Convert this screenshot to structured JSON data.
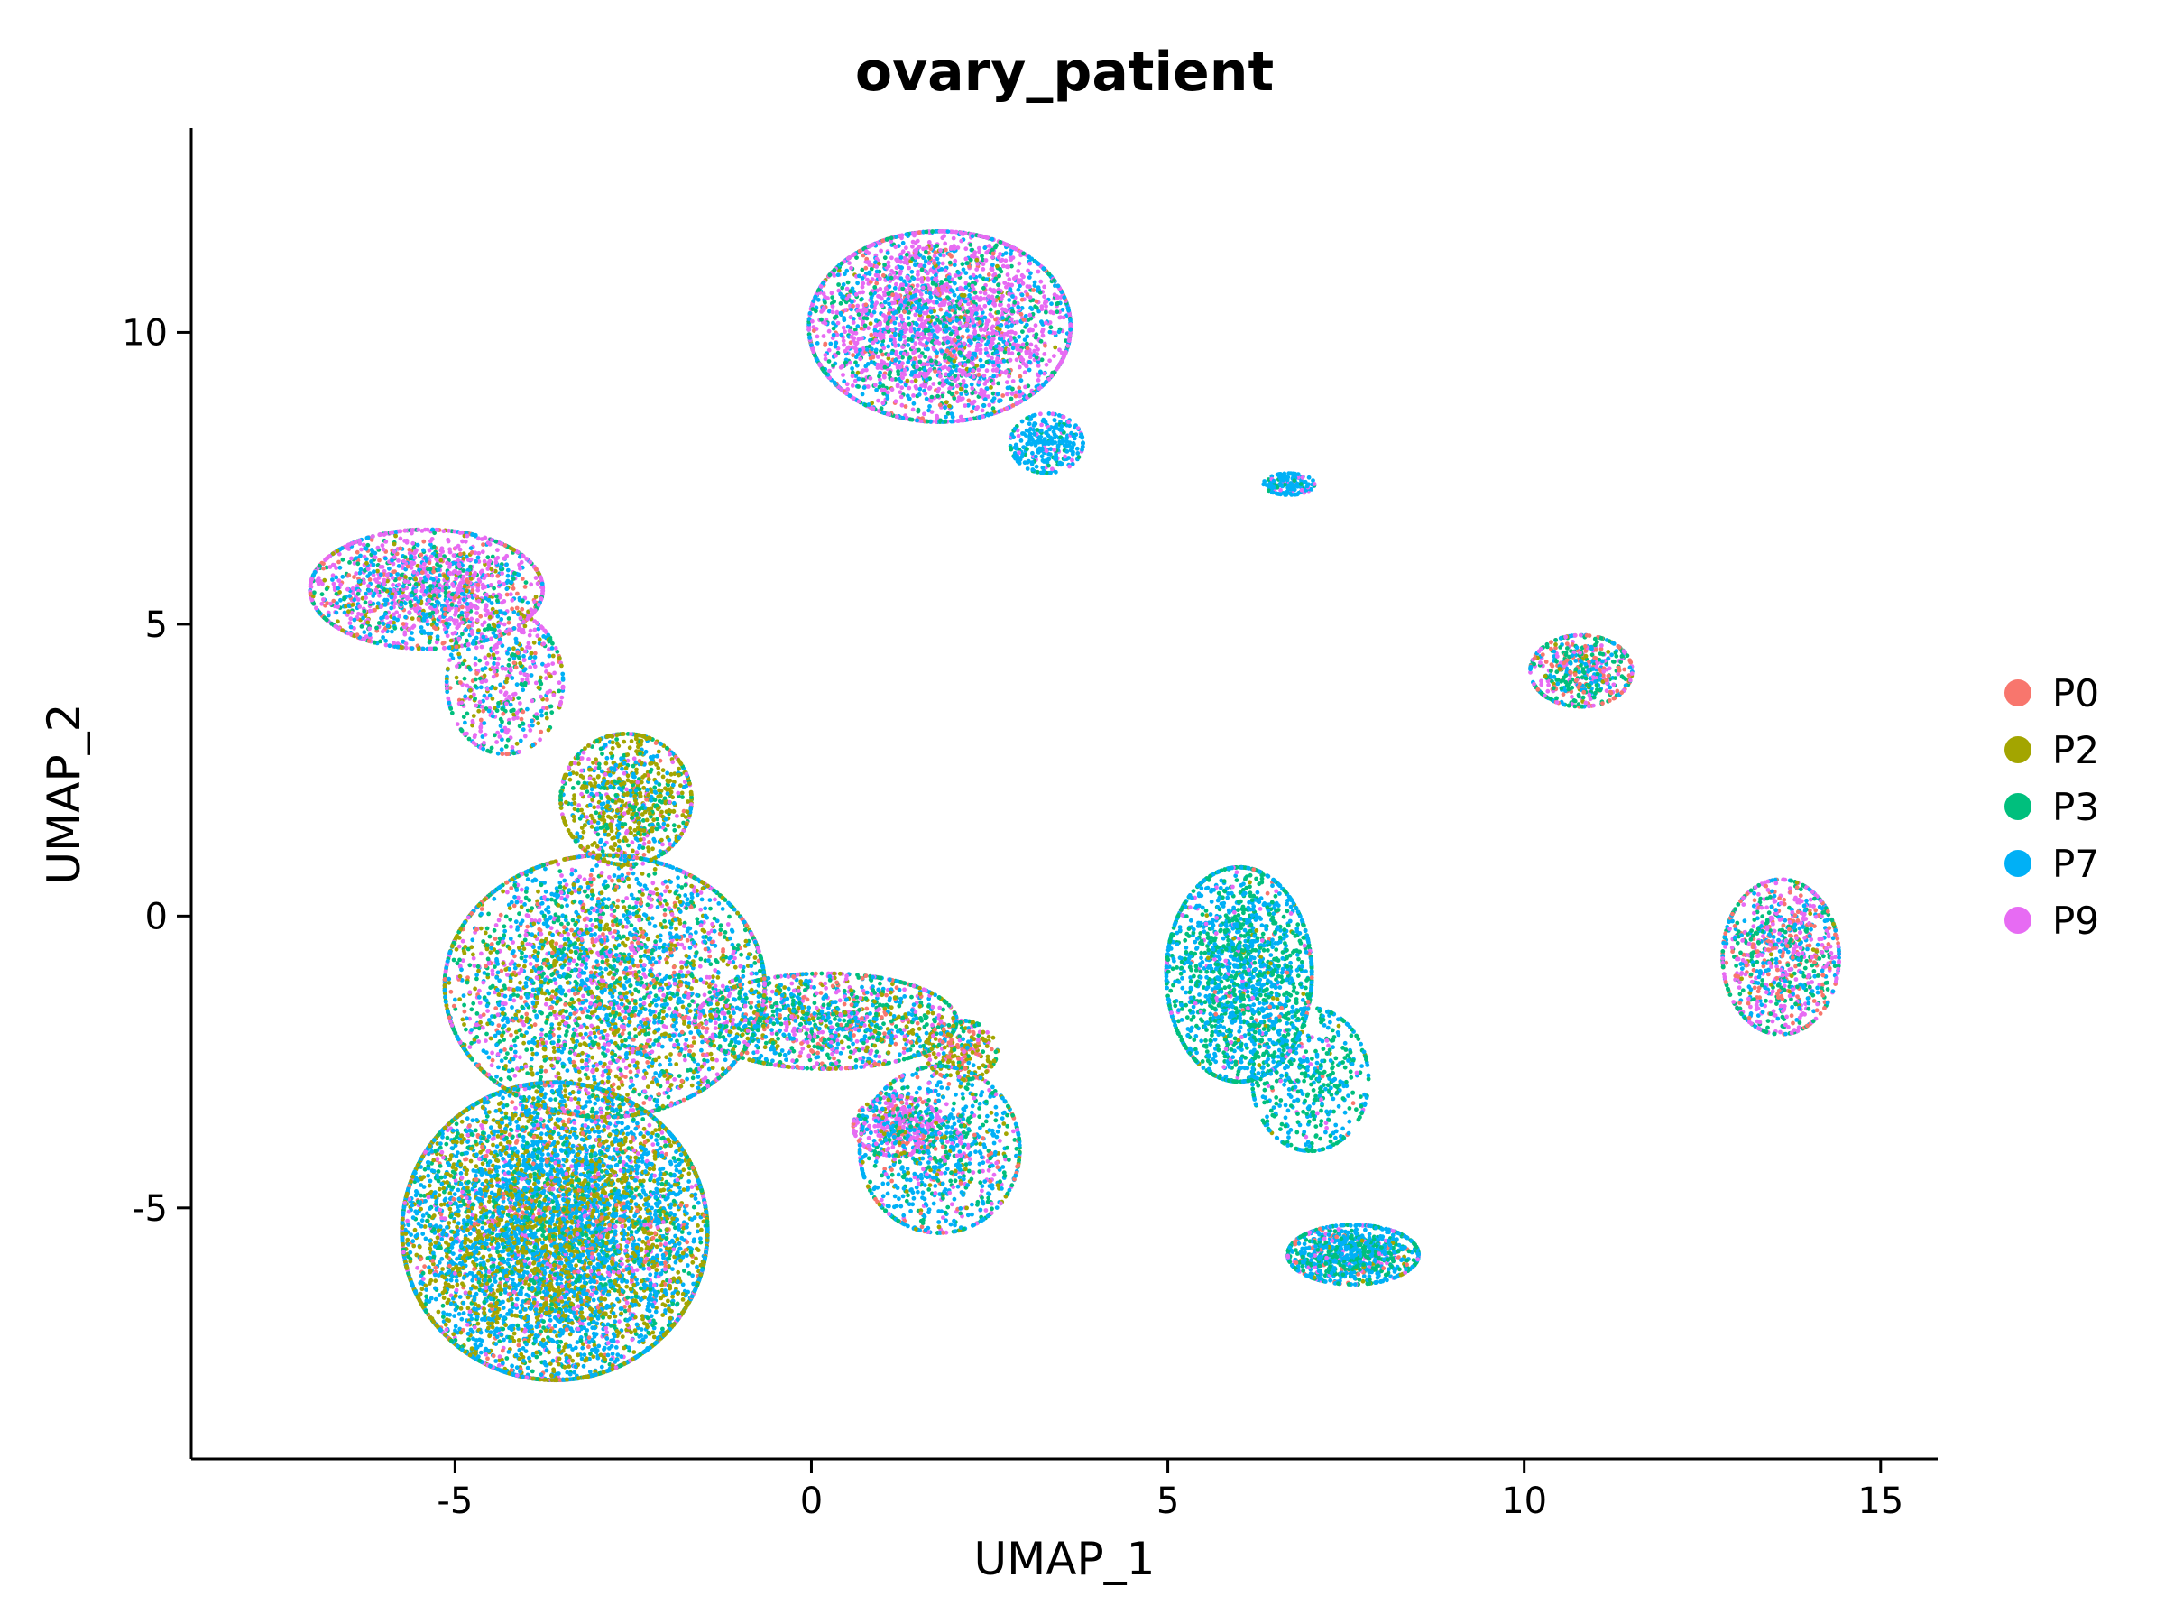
{
  "chart_data": {
    "type": "scatter",
    "title": "ovary_patient",
    "xlabel": "UMAP_1",
    "ylabel": "UMAP_2",
    "xlim": [
      -8.7,
      15.8
    ],
    "ylim": [
      -9.3,
      13.5
    ],
    "xticks": [
      -5,
      0,
      5,
      10,
      15
    ],
    "xtick_labels": [
      "-5",
      "0",
      "5",
      "10",
      "15"
    ],
    "yticks": [
      -5,
      0,
      5,
      10
    ],
    "ytick_labels": [
      "-5",
      "0",
      "5",
      "10"
    ],
    "grid": false,
    "legend_position": "right",
    "series": [
      {
        "name": "P0",
        "color": "#F8766D"
      },
      {
        "name": "P2",
        "color": "#A3A500"
      },
      {
        "name": "P3",
        "color": "#00BF7D"
      },
      {
        "name": "P7",
        "color": "#00B0F6"
      },
      {
        "name": "P9",
        "color": "#E76BF3"
      }
    ],
    "clusters": [
      {
        "cx": -3.6,
        "cy": -5.4,
        "rx": 2.1,
        "ry": 2.5,
        "weights": [
          0.04,
          0.3,
          0.12,
          0.46,
          0.08
        ],
        "n": 7000
      },
      {
        "cx": -2.9,
        "cy": -1.2,
        "rx": 2.2,
        "ry": 2.2,
        "weights": [
          0.08,
          0.22,
          0.2,
          0.32,
          0.18
        ],
        "n": 3500
      },
      {
        "cx": -2.6,
        "cy": 2.0,
        "rx": 0.9,
        "ry": 1.1,
        "weights": [
          0.04,
          0.45,
          0.2,
          0.21,
          0.1
        ],
        "n": 900
      },
      {
        "cx": -5.4,
        "cy": 5.6,
        "rx": 1.6,
        "ry": 1.0,
        "weights": [
          0.1,
          0.08,
          0.15,
          0.22,
          0.45
        ],
        "n": 1600
      },
      {
        "cx": -4.3,
        "cy": 4.0,
        "rx": 0.8,
        "ry": 1.2,
        "weights": [
          0.06,
          0.12,
          0.2,
          0.22,
          0.4
        ],
        "n": 500
      },
      {
        "cx": 0.2,
        "cy": -1.8,
        "rx": 1.8,
        "ry": 0.8,
        "weights": [
          0.08,
          0.15,
          0.25,
          0.32,
          0.2
        ],
        "n": 1300
      },
      {
        "cx": 1.8,
        "cy": -4.0,
        "rx": 1.1,
        "ry": 1.4,
        "weights": [
          0.05,
          0.08,
          0.22,
          0.5,
          0.15
        ],
        "n": 1000
      },
      {
        "cx": 1.2,
        "cy": -3.6,
        "rx": 0.6,
        "ry": 0.5,
        "weights": [
          0.1,
          0.05,
          0.1,
          0.15,
          0.6
        ],
        "n": 300
      },
      {
        "cx": 2.1,
        "cy": -2.3,
        "rx": 0.5,
        "ry": 0.5,
        "weights": [
          0.3,
          0.4,
          0.1,
          0.1,
          0.1
        ],
        "n": 250
      },
      {
        "cx": 1.8,
        "cy": 10.1,
        "rx": 1.8,
        "ry": 1.6,
        "weights": [
          0.05,
          0.03,
          0.17,
          0.25,
          0.5
        ],
        "n": 3000
      },
      {
        "cx": 3.3,
        "cy": 8.1,
        "rx": 0.5,
        "ry": 0.5,
        "weights": [
          0.0,
          0.0,
          0.1,
          0.8,
          0.1
        ],
        "n": 300
      },
      {
        "cx": 6.7,
        "cy": 7.4,
        "rx": 0.35,
        "ry": 0.18,
        "weights": [
          0.0,
          0.0,
          0.1,
          0.8,
          0.1
        ],
        "n": 150
      },
      {
        "cx": 6.0,
        "cy": -1.0,
        "rx": 1.0,
        "ry": 1.8,
        "weights": [
          0.02,
          0.02,
          0.4,
          0.51,
          0.05
        ],
        "n": 1800
      },
      {
        "cx": 7.0,
        "cy": -2.8,
        "rx": 0.8,
        "ry": 1.2,
        "weights": [
          0.02,
          0.02,
          0.45,
          0.46,
          0.05
        ],
        "n": 500
      },
      {
        "cx": 7.6,
        "cy": -5.8,
        "rx": 0.9,
        "ry": 0.5,
        "weights": [
          0.05,
          0.02,
          0.3,
          0.53,
          0.1
        ],
        "n": 900
      },
      {
        "cx": 10.8,
        "cy": 4.2,
        "rx": 0.7,
        "ry": 0.6,
        "weights": [
          0.25,
          0.05,
          0.3,
          0.2,
          0.2
        ],
        "n": 500
      },
      {
        "cx": 13.6,
        "cy": -0.7,
        "rx": 0.8,
        "ry": 1.3,
        "weights": [
          0.15,
          0.02,
          0.25,
          0.23,
          0.35
        ],
        "n": 900
      }
    ]
  }
}
